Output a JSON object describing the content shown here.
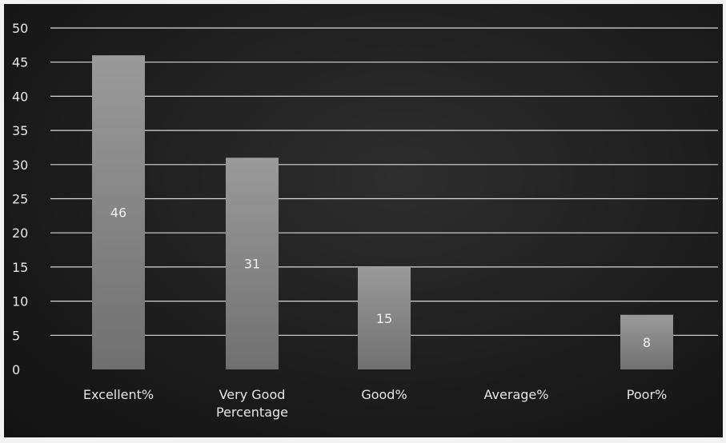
{
  "chart_data": {
    "type": "bar",
    "categories": [
      "Excellent%",
      "Very Good\nPercentage",
      "Good%",
      "Average%",
      "Poor%"
    ],
    "values": [
      46,
      31,
      15,
      0,
      8
    ],
    "data_labels": [
      "46",
      "31",
      "15",
      "",
      "8"
    ],
    "title": "",
    "xlabel": "",
    "ylabel": "",
    "ylim": [
      0,
      50
    ],
    "yticks": [
      0,
      5,
      10,
      15,
      20,
      25,
      30,
      35,
      40,
      45,
      50
    ],
    "grid": true,
    "legend": "none",
    "colors": {
      "background": "#1e1e1e",
      "bar_top": "#9a9a9a",
      "bar_bottom": "#707070",
      "gridline": "#d8d8d8",
      "text": "#e6e6e6"
    }
  }
}
